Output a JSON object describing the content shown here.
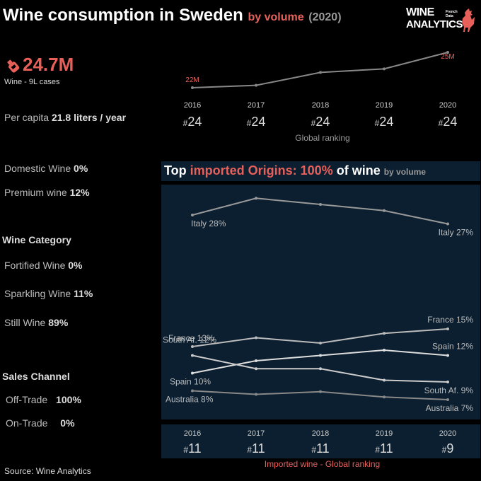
{
  "header": {
    "title": "Wine consumption in Sweden",
    "subtitle": "by volume",
    "year": "(2020)"
  },
  "logo": {
    "line1": "WINE",
    "line2": "ANALYTICS",
    "tagline": "French Data"
  },
  "kpi": {
    "value": "24.7M",
    "caption": "Wine - 9L cases",
    "per_capita_label": "Per capita",
    "per_capita_value": "21.8 liters / year"
  },
  "shares": {
    "domestic_label": "Domestic Wine",
    "domestic_value": "0%",
    "premium_label": "Premium wine",
    "premium_value": "12%"
  },
  "category": {
    "heading": "Wine Category",
    "fortified_label": "Fortified Wine",
    "fortified_value": "0%",
    "sparkling_label": "Sparkling Wine",
    "sparkling_value": "11%",
    "still_label": "Still Wine",
    "still_value": "89%"
  },
  "channel": {
    "heading": "Sales Channel",
    "off_label": "Off-Trade",
    "off_value": "100%",
    "on_label": "On-Trade",
    "on_value": "0%"
  },
  "source": "Source: Wine Analytics",
  "imports": {
    "title_prefix": "Top ",
    "title_red": "imported Origins: 100%",
    "title_suffix": " of wine",
    "title_unit": "by volume"
  },
  "colors": {
    "accent": "#e8605a",
    "panel": "#0b1f30",
    "line_light": "#cccccc",
    "line_gray": "#888888"
  },
  "chart_data": [
    {
      "type": "line",
      "x": [
        "2016",
        "2017",
        "2018",
        "2019",
        "2020"
      ],
      "series": [
        {
          "values": [
            22,
            22.2,
            23.3,
            23.6,
            25
          ]
        }
      ],
      "point_labels": {
        "first": "22M",
        "last": "25M"
      },
      "ranks": [
        "24",
        "24",
        "24",
        "24",
        "24"
      ],
      "rank_caption": "Global ranking"
    },
    {
      "type": "line",
      "x": [
        "2016",
        "2017",
        "2018",
        "2019",
        "2020"
      ],
      "series": [
        {
          "name": "Italy",
          "values": [
            28,
            29.9,
            29.2,
            28.5,
            27
          ],
          "first_label": "Italy 28%",
          "last_label": "Italy 27%",
          "color": "#999999"
        },
        {
          "name": "France",
          "values": [
            13,
            14,
            13.4,
            14.5,
            15
          ],
          "first_label": "France 13%",
          "last_label": "France 15%",
          "color": "#bbbbbb"
        },
        {
          "name": "Spain",
          "values": [
            10,
            11.4,
            12,
            12.6,
            12
          ],
          "first_label": "Spain 10%",
          "last_label": "Spain 12%",
          "color": "#dddddd"
        },
        {
          "name": "South Af.",
          "values": [
            12,
            10.5,
            10.5,
            9.2,
            9
          ],
          "first_label": "South Af. 12%",
          "last_label": "South Af. 9%",
          "color": "#cccccc"
        },
        {
          "name": "Australia",
          "values": [
            8,
            7.6,
            7.9,
            7.3,
            7
          ],
          "first_label": "Australia 8%",
          "last_label": "Australia 7%",
          "color": "#888888"
        }
      ],
      "ranks": [
        "11",
        "11",
        "11",
        "11",
        "9"
      ],
      "rank_caption": "Imported wine - Global ranking"
    }
  ]
}
